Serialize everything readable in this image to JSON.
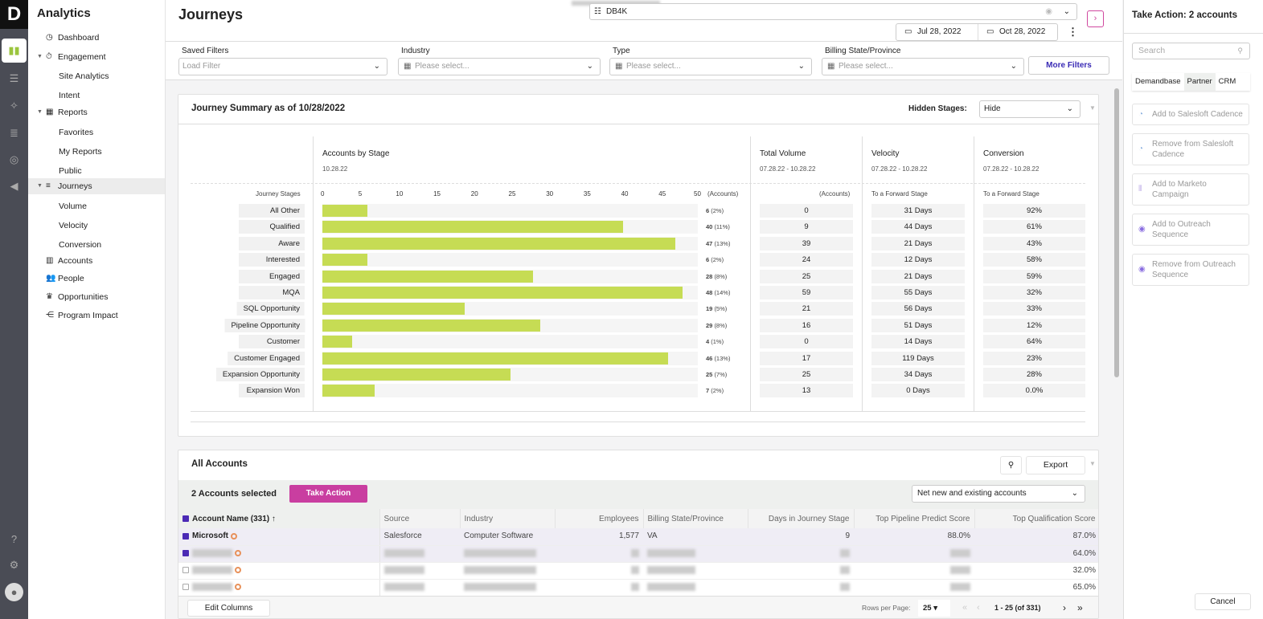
{
  "rail": {
    "logo": "D",
    "items": [
      "bar-chart-icon",
      "funnel-icon",
      "wand-icon",
      "database-icon",
      "target-icon",
      "megaphone-icon"
    ],
    "bottom": [
      "help-icon",
      "gear-icon",
      "user-icon"
    ]
  },
  "sidebar": {
    "title": "Analytics",
    "items": [
      {
        "label": "Dashboard",
        "level": 0,
        "icon": "◷"
      },
      {
        "label": "Engagement",
        "level": 0,
        "icon": "⏱",
        "caret": true
      },
      {
        "label": "Site Analytics",
        "level": 1
      },
      {
        "label": "Intent",
        "level": 1
      },
      {
        "label": "Reports",
        "level": 0,
        "icon": "▦",
        "caret": true
      },
      {
        "label": "Favorites",
        "level": 1
      },
      {
        "label": "My Reports",
        "level": 1
      },
      {
        "label": "Public",
        "level": 1
      },
      {
        "label": "Journeys",
        "level": 0,
        "icon": "≡",
        "caret": true,
        "active": true
      },
      {
        "label": "Volume",
        "level": 1
      },
      {
        "label": "Velocity",
        "level": 1
      },
      {
        "label": "Conversion",
        "level": 1
      },
      {
        "label": "Accounts",
        "level": 0,
        "icon": "▥"
      },
      {
        "label": "People",
        "level": 0,
        "icon": "👥"
      },
      {
        "label": "Opportunities",
        "level": 0,
        "icon": "♛"
      },
      {
        "label": "Program Impact",
        "level": 0,
        "icon": "⋲"
      }
    ]
  },
  "header": {
    "title": "Journeys",
    "list_select": "DB4K",
    "start_date": "Jul 28, 2022",
    "end_date": "Oct 28, 2022"
  },
  "filters": [
    {
      "label": "Saved Filters",
      "placeholder": "Load Filter"
    },
    {
      "label": "Industry",
      "placeholder": "Please select..."
    },
    {
      "label": "Type",
      "placeholder": "Please select..."
    },
    {
      "label": "Billing State/Province",
      "placeholder": "Please select..."
    }
  ],
  "more_filters": "More Filters",
  "summary": {
    "title": "Journey Summary as of 10/28/2022",
    "hidden_stages_label": "Hidden Stages:",
    "hidden_stages_value": "Hide",
    "stages_label": "Journey Stages",
    "accounts_title": "Accounts by Stage",
    "accounts_date": "10.28.22",
    "accounts_unit": "(Accounts)",
    "volume_title": "Total Volume",
    "volume_date": "07.28.22 - 10.28.22",
    "volume_unit": "(Accounts)",
    "velocity_title": "Velocity",
    "velocity_date": "07.28.22 - 10.28.22",
    "velocity_unit": "To a Forward Stage",
    "conversion_title": "Conversion",
    "conversion_date": "07.28.22 - 10.28.22",
    "conversion_unit": "To a Forward Stage"
  },
  "chart_data": {
    "type": "bar",
    "orientation": "horizontal",
    "xlim": [
      0,
      50
    ],
    "ticks": [
      "0",
      "5",
      "10",
      "15",
      "20",
      "25",
      "30",
      "35",
      "40",
      "45",
      "50"
    ],
    "color": "#c6dc54",
    "categories": [
      "All Other",
      "Qualified",
      "Aware",
      "Interested",
      "Engaged",
      "MQA",
      "SQL Opportunity",
      "Pipeline Opportunity",
      "Customer",
      "Customer Engaged",
      "Expansion Opportunity",
      "Expansion Won"
    ],
    "values": [
      6,
      40,
      47,
      6,
      28,
      48,
      19,
      29,
      4,
      46,
      25,
      7
    ],
    "percents": [
      "(2%)",
      "(11%)",
      "(13%)",
      "(2%)",
      "(8%)",
      "(14%)",
      "(5%)",
      "(8%)",
      "(1%)",
      "(13%)",
      "(7%)",
      "(2%)"
    ],
    "volume": [
      "0",
      "9",
      "39",
      "24",
      "25",
      "59",
      "21",
      "16",
      "0",
      "17",
      "25",
      "13"
    ],
    "velocity": [
      "31 Days",
      "44 Days",
      "21 Days",
      "12 Days",
      "21 Days",
      "55 Days",
      "56 Days",
      "51 Days",
      "14 Days",
      "119 Days",
      "34 Days",
      "0 Days"
    ],
    "conversion": [
      "92%",
      "61%",
      "43%",
      "58%",
      "59%",
      "32%",
      "33%",
      "12%",
      "64%",
      "23%",
      "28%",
      "0.0%"
    ]
  },
  "accounts": {
    "title": "All Accounts",
    "export": "Export",
    "selected": "2 Accounts selected",
    "take_action": "Take Action",
    "scope": "Net new and existing accounts",
    "columns": [
      "Account Name (331) ↑",
      "Source",
      "Industry",
      "Employees",
      "Billing State/Province",
      "Days in Journey Stage",
      "Top Pipeline Predict Score",
      "Top Qualification Score"
    ],
    "rows": [
      {
        "name": "Microsoft",
        "source": "Salesforce",
        "industry": "Computer Software",
        "employees": "1,577",
        "state": "VA",
        "days": "9",
        "pipeline": "88.0%",
        "qual": "87.0%",
        "checked": true
      },
      {
        "checked": true,
        "qual": "64.0%"
      },
      {
        "checked": false,
        "qual": "32.0%"
      },
      {
        "checked": false,
        "qual": "65.0%"
      }
    ],
    "edit_columns": "Edit Columns",
    "rows_per_page_label": "Rows per Page:",
    "rows_per_page": "25",
    "range": "1 - 25 (of 331)"
  },
  "right": {
    "title": "Take Action: 2 accounts",
    "search_placeholder": "Search",
    "tabs": [
      "Demandbase",
      "Partner",
      "CRM"
    ],
    "active_tab": "Partner",
    "actions": [
      {
        "label": "Add to Salesloft Cadence",
        "icon": "salesloft-icon"
      },
      {
        "label": "Remove from Salesloft Cadence",
        "icon": "salesloft-icon"
      },
      {
        "label": "Add to Marketo Campaign",
        "icon": "marketo-icon"
      },
      {
        "label": "Add to Outreach Sequence",
        "icon": "outreach-icon"
      },
      {
        "label": "Remove from Outreach Sequence",
        "icon": "outreach-icon"
      }
    ],
    "cancel": "Cancel"
  }
}
